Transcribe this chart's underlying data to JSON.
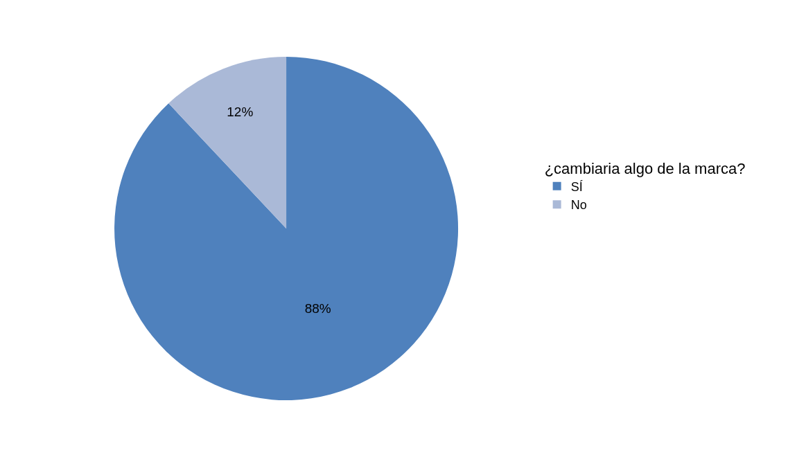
{
  "chart_data": {
    "type": "pie",
    "legend_title": "¿cambiaria algo de la marca?",
    "categories": [
      "SÍ",
      "No"
    ],
    "values": [
      88,
      12
    ],
    "colors": [
      "#4f81bd",
      "#aab9d7"
    ],
    "value_labels": [
      "88%",
      "12%"
    ],
    "legend": "right"
  }
}
